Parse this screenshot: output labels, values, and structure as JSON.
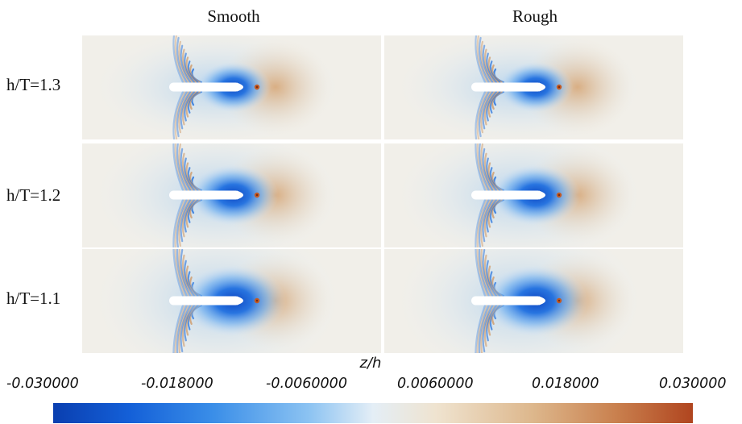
{
  "columns": [
    "Smooth",
    "Rough"
  ],
  "rows": [
    "h/T=1.3",
    "h/T=1.2",
    "h/T=1.1"
  ],
  "colorbar": {
    "title": "z/h",
    "ticks": [
      "-0.030000",
      "-0.018000",
      "-0.0060000",
      "0.0060000",
      "0.018000",
      "0.030000"
    ],
    "colors": {
      "min": "#0a3fb0",
      "mid": "#e4eef6",
      "max": "#b0451f"
    }
  }
}
